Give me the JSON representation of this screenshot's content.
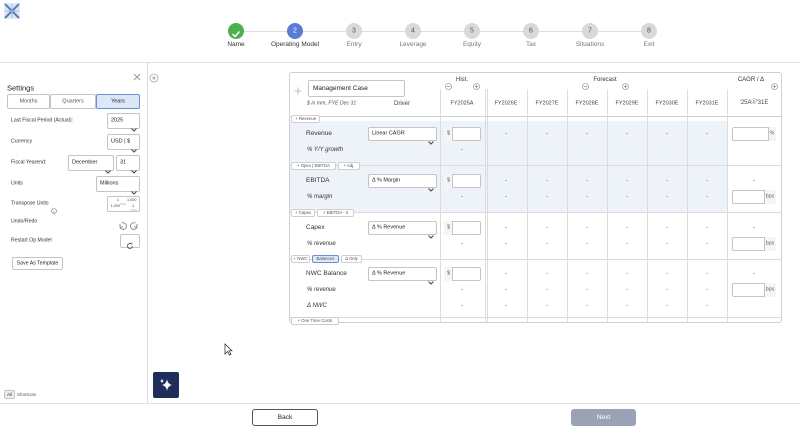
{
  "stepper": {
    "steps": [
      {
        "label": "Name"
      },
      {
        "number": "2",
        "label": "Operating Model"
      },
      {
        "number": "3",
        "label": "Entry"
      },
      {
        "number": "4",
        "label": "Leverage"
      },
      {
        "number": "5",
        "label": "Equity"
      },
      {
        "number": "6",
        "label": "Tax"
      },
      {
        "number": "7",
        "label": "Situations"
      },
      {
        "number": "8",
        "label": "Exit"
      }
    ]
  },
  "settings": {
    "title": "Settings",
    "tabs": [
      "Months",
      "Quarters",
      "Years"
    ],
    "fields": [
      {
        "label": "Last Fiscal Period (Actual):",
        "value": "2025"
      },
      {
        "label": "Currency",
        "value": "USD | $"
      },
      {
        "label": "Fiscal Yearend:",
        "values": [
          "December",
          "31"
        ]
      },
      {
        "label": "Units",
        "value": "Millions"
      },
      {
        "label": "Transpose Units",
        "icon": [
          "1",
          "1,000",
          "1,000",
          "1"
        ]
      },
      {
        "label": "Undo/Redo"
      },
      {
        "label": "Restart Op Model"
      }
    ],
    "save_button": "Save As Template",
    "shortcuts": {
      "key": "All",
      "label": "Shortcuts"
    }
  },
  "table": {
    "case_name": "Management Case",
    "hist_label": "Hist.",
    "forecast_label": "Forecast",
    "cagr_label": "CAGR / Δ",
    "units_note": "$ in mm, FYE Dec 31",
    "driver_header": "Driver",
    "columns": [
      "FY2025A",
      "FY2026E",
      "FY2027E",
      "FY2028E",
      "FY2029E",
      "FY2030E",
      "FY2031E"
    ],
    "cagr_period": "'25A - '31E",
    "sections": [
      {
        "tags": [
          "+ Revenue"
        ],
        "rows": [
          {
            "label": "Revenue",
            "driver": "Linear CAGR",
            "hist_input": "$",
            "forecast": [
              "-",
              "-",
              "-",
              "-",
              "-",
              "-"
            ],
            "cagr_input": "%"
          },
          {
            "label": "% Y/Y growth",
            "italic": true,
            "hist": "-"
          }
        ]
      },
      {
        "tags": [
          "+ Opex | EBITDA",
          "+ Adj."
        ],
        "rows": [
          {
            "label": "EBITDA",
            "driver": "Δ % Margin",
            "hist_input": "$",
            "forecast": [
              "-",
              "-",
              "-",
              "-",
              "-",
              "-"
            ],
            "cagr": "-"
          },
          {
            "label": "% margin",
            "italic": true,
            "hist": "-",
            "forecast": [
              "-",
              "-",
              "-",
              "-",
              "-",
              "-"
            ],
            "cagr_input": "bps"
          }
        ]
      },
      {
        "tags": [
          "+ Capex",
          "+ EBITDA - X"
        ],
        "rows": [
          {
            "label": "Capex",
            "driver": "Δ % Revenue",
            "hist_input": "$",
            "forecast": [
              "-",
              "-",
              "-",
              "-",
              "-",
              "-"
            ],
            "cagr": "-"
          },
          {
            "label": "% revenue",
            "italic": true,
            "hist": "-",
            "forecast": [
              "-",
              "-",
              "-",
              "-",
              "-",
              "-"
            ],
            "cagr_input": "bps"
          }
        ]
      },
      {
        "tags": [
          "+ NWC",
          "Balances",
          "Δ Only"
        ],
        "rows": [
          {
            "label": "NWC Balance",
            "driver": "Δ % Revenue",
            "hist_input": "$",
            "forecast": [
              "-",
              "-",
              "-",
              "-",
              "-",
              "-"
            ],
            "cagr": "-"
          },
          {
            "label": "% revenue",
            "italic": true,
            "hist": "-",
            "forecast": [
              "-",
              "-",
              "-",
              "-",
              "-",
              "-"
            ],
            "cagr_input": "bps"
          },
          {
            "label": "Δ NWC",
            "italic": true,
            "hist": "-",
            "forecast": [
              "-",
              "-",
              "-",
              "-",
              "-",
              "-"
            ]
          }
        ]
      },
      {
        "tags": [
          "+ One Time Costs"
        ],
        "rows": []
      }
    ]
  },
  "footer": {
    "back": "Back",
    "next": "Next"
  }
}
